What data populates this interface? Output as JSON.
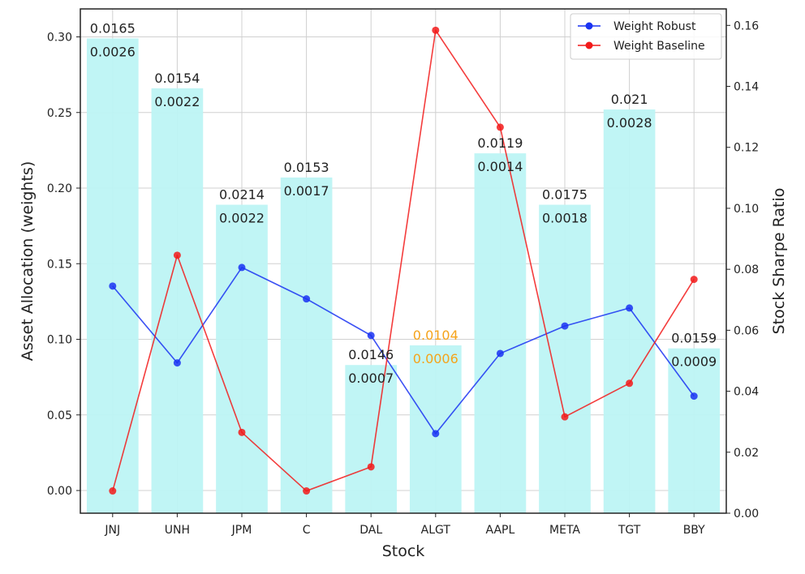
{
  "chart_data": {
    "type": "bar",
    "xlabel": "Stock",
    "ylabel_left": "Asset Allocation (weights)",
    "ylabel_right": "Stock Sharpe Ratio",
    "categories": [
      "JNJ",
      "UNH",
      "JPM",
      "C",
      "DAL",
      "ALGT",
      "AAPL",
      "META",
      "TGT",
      "BBY"
    ],
    "ylim_left": [
      -0.015,
      0.3185
    ],
    "yticks_left": [
      "0.00",
      "0.05",
      "0.10",
      "0.15",
      "0.20",
      "0.25",
      "0.30"
    ],
    "ylim_right": [
      0.0,
      0.1654
    ],
    "yticks_right": [
      "0.00",
      "0.02",
      "0.04",
      "0.06",
      "0.08",
      "0.10",
      "0.12",
      "0.14",
      "0.16"
    ],
    "grid": true,
    "bars": {
      "axis": "left",
      "color": "#bdf4f4",
      "values": [
        0.299,
        0.266,
        0.189,
        0.207,
        0.083,
        0.096,
        0.223,
        0.189,
        0.252,
        0.094
      ]
    },
    "bar_labels_top": [
      "0.0165",
      "0.0154",
      "0.0214",
      "0.0153",
      "0.0146",
      "0.0104",
      "0.0119",
      "0.0175",
      "0.021",
      "0.0159"
    ],
    "bar_labels_bottom": [
      "0.0026",
      "0.0022",
      "0.0022",
      "0.0017",
      "0.0007",
      "0.0006",
      "0.0014",
      "0.0018",
      "0.0028",
      "0.0009"
    ],
    "label_colors": [
      "#222222",
      "#222222",
      "#222222",
      "#222222",
      "#222222",
      "#f5a31a",
      "#222222",
      "#222222",
      "#222222",
      "#222222"
    ],
    "series": [
      {
        "name": "Weight Robust",
        "axis": "right",
        "color": "#1a33f2",
        "values": [
          0.0745,
          0.0493,
          0.0806,
          0.0703,
          0.0583,
          0.0261,
          0.0524,
          0.0614,
          0.0673,
          0.0384
        ]
      },
      {
        "name": "Weight Baseline",
        "axis": "right",
        "color": "#f21a1a",
        "values": [
          0.0073,
          0.0846,
          0.0265,
          0.0073,
          0.0152,
          0.1584,
          0.1266,
          0.0316,
          0.0426,
          0.0767
        ]
      }
    ],
    "legend": {
      "position": "top-right",
      "entries": [
        "Weight Robust",
        "Weight Baseline"
      ]
    }
  }
}
